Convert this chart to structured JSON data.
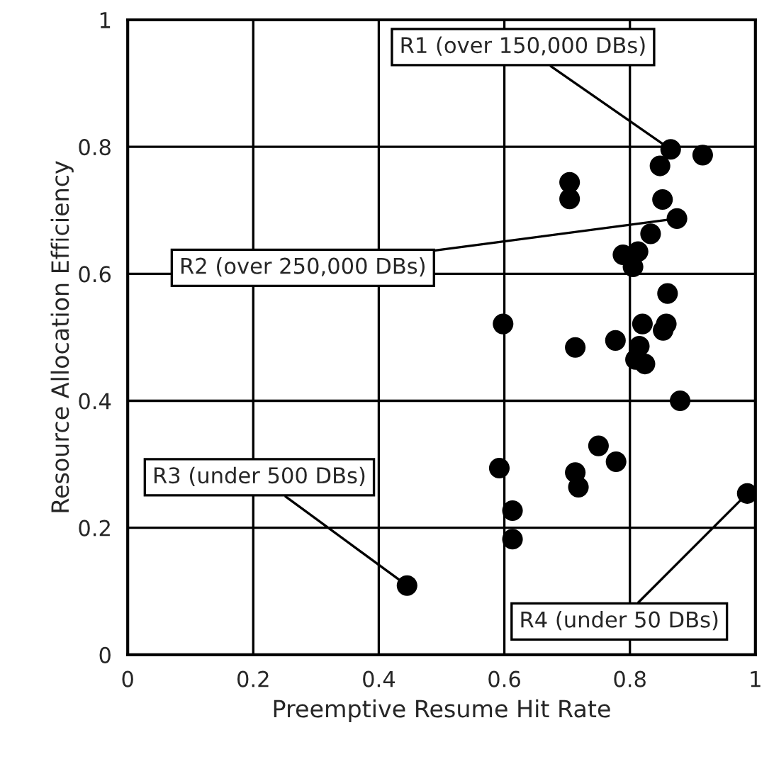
{
  "chart_data": {
    "type": "scatter",
    "xlabel": "Preemptive Resume Hit Rate",
    "ylabel": "Resource Allocation Efficiency",
    "xlim": [
      0,
      1
    ],
    "ylim": [
      0,
      1
    ],
    "xticks": [
      0,
      0.2,
      0.4,
      0.6,
      0.8,
      1
    ],
    "yticks": [
      0,
      0.2,
      0.4,
      0.6,
      0.8,
      1
    ],
    "grid": true,
    "marker": "circle",
    "series": [
      {
        "color": "#000000",
        "x": [
          0.865,
          0.916,
          0.848,
          0.704,
          0.704,
          0.852,
          0.875,
          0.833,
          0.789,
          0.813,
          0.805,
          0.86,
          0.598,
          0.82,
          0.858,
          0.853,
          0.713,
          0.777,
          0.815,
          0.809,
          0.824,
          0.88,
          0.592,
          0.75,
          0.778,
          0.713,
          0.718,
          0.613,
          0.613,
          0.987,
          0.445
        ],
        "values": [
          0.796,
          0.787,
          0.77,
          0.744,
          0.718,
          0.717,
          0.687,
          0.663,
          0.63,
          0.635,
          0.611,
          0.569,
          0.521,
          0.521,
          0.521,
          0.511,
          0.484,
          0.495,
          0.486,
          0.465,
          0.458,
          0.4,
          0.294,
          0.329,
          0.304,
          0.287,
          0.264,
          0.227,
          0.182,
          0.254,
          0.109
        ]
      }
    ],
    "annotations": [
      {
        "text": "R1 (over 150,000 DBs)",
        "x": 0.865,
        "y": 0.796
      },
      {
        "text": "R2 (over 250,000 DBs)",
        "x": 0.875,
        "y": 0.687
      },
      {
        "text": "R3 (under 500 DBs)",
        "x": 0.445,
        "y": 0.109
      },
      {
        "text": "R4 (under 50 DBs)",
        "x": 0.987,
        "y": 0.254
      }
    ]
  }
}
